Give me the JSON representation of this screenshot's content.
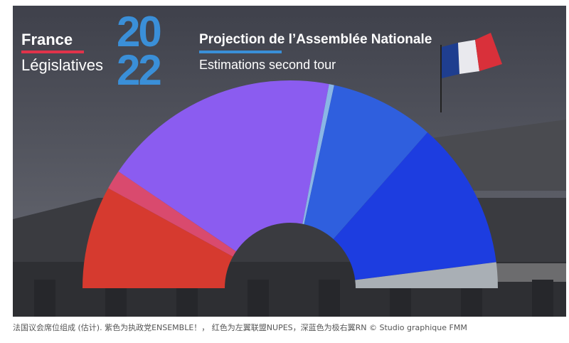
{
  "branding": {
    "country": "France",
    "election_type": "Législatives",
    "year_top": "20",
    "year_bottom": "22"
  },
  "chart_data": {
    "type": "pie",
    "variant": "hemicycle",
    "title": "Projection de l’Assemblée Nationale",
    "subtitle": "Estimations second tour",
    "segments": [
      {
        "value": 0.16,
        "color": "#d63a2f"
      },
      {
        "value": 0.03,
        "color": "#d94a6e"
      },
      {
        "value": 0.37,
        "color": "#8b5cf0"
      },
      {
        "value": 0.008,
        "color": "#8ab6e6"
      },
      {
        "value": 0.162,
        "color": "#2f5fde"
      },
      {
        "value": 0.23,
        "color": "#1d3de0"
      },
      {
        "value": 0.04,
        "color": "#a9afb5"
      }
    ]
  },
  "caption": "法国议会席位组成 (估计). 紫色为执政党ENSEMBLE！， 红色为左翼联盟NUPES，深蓝色为极右翼RN © Studio graphique FMM"
}
